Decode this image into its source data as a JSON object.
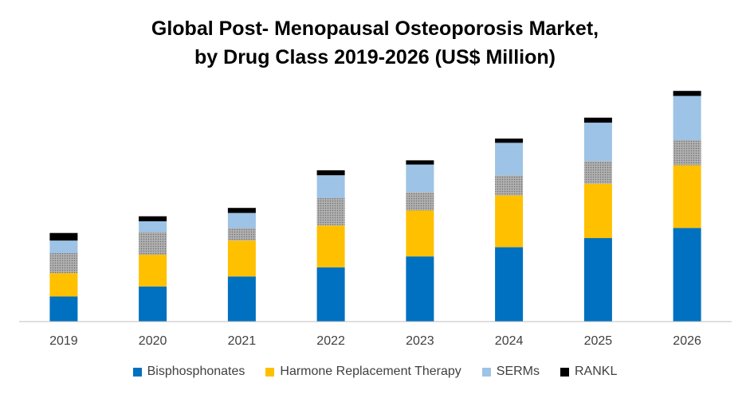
{
  "title": [
    "Global Post- Menopausal Osteoporosis Market,",
    "by Drug Class 2019-2026 (US$ Million)"
  ],
  "chart_data": {
    "type": "bar",
    "stacked": true,
    "categories": [
      "2019",
      "2020",
      "2021",
      "2022",
      "2023",
      "2024",
      "2025",
      "2026"
    ],
    "ylim": [
      0,
      280
    ],
    "grid": false,
    "legend_position": "bottom",
    "series": [
      {
        "name": "Bisphosphonates",
        "color": "#0070C0",
        "values": [
          30,
          42,
          54,
          65,
          78,
          89,
          100,
          112
        ]
      },
      {
        "name": "Harmone Replacement Therapy",
        "color": "#FFC000",
        "values": [
          28,
          38,
          43,
          50,
          55,
          62,
          65,
          75
        ]
      },
      {
        "name": "",
        "color": "#A6A6A6",
        "pattern": "dots",
        "values": [
          24,
          27,
          15,
          33,
          22,
          24,
          27,
          30
        ]
      },
      {
        "name": "SERMs",
        "color": "#9DC3E6",
        "values": [
          15,
          13,
          18,
          27,
          33,
          39,
          46,
          53
        ]
      },
      {
        "name": "RANKL",
        "color": "#000000",
        "values": [
          9,
          6,
          6,
          6,
          5,
          5,
          6,
          6
        ]
      }
    ]
  },
  "legend": [
    {
      "label": "Bisphosphonates",
      "color": "#0070C0"
    },
    {
      "label": "Harmone Replacement Therapy",
      "color": "#FFC000"
    },
    {
      "label": "SERMs",
      "color": "#9DC3E6"
    },
    {
      "label": "RANKL",
      "color": "#000000"
    }
  ]
}
